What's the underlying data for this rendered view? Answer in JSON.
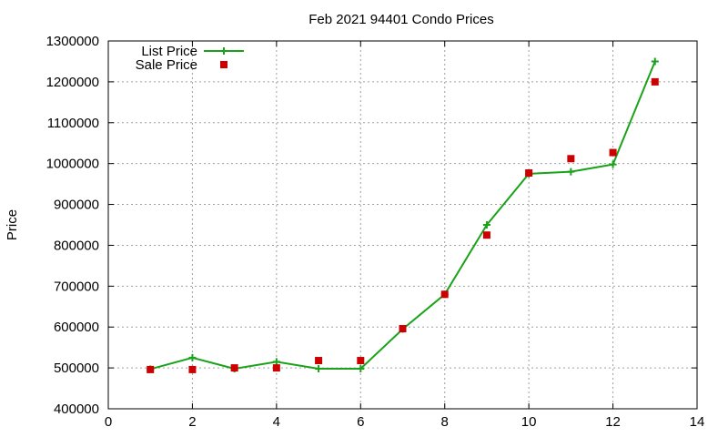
{
  "chart_data": {
    "type": "line",
    "title": "Feb 2021 94401 Condo Prices",
    "xlabel": "",
    "ylabel": "Price",
    "xlim": [
      0,
      14
    ],
    "ylim": [
      400000,
      1300000
    ],
    "xticks": [
      0,
      2,
      4,
      6,
      8,
      10,
      12,
      14
    ],
    "yticks": [
      400000,
      500000,
      600000,
      700000,
      800000,
      900000,
      1000000,
      1100000,
      1200000,
      1300000
    ],
    "grid": true,
    "legend": "top-left",
    "series": [
      {
        "name": "List Price",
        "style": "line+cross",
        "color": "#1aa31a",
        "x": [
          1,
          2,
          3,
          4,
          5,
          6,
          7,
          8,
          9,
          10,
          11,
          12,
          13
        ],
        "y": [
          497000,
          525000,
          498000,
          515000,
          498000,
          498000,
          595000,
          680000,
          850000,
          975000,
          980000,
          998000,
          1250000
        ]
      },
      {
        "name": "Sale Price",
        "style": "square",
        "color": "#cc0000",
        "x": [
          1,
          2,
          3,
          4,
          5,
          6,
          7,
          8,
          9,
          10,
          11,
          12,
          13
        ],
        "y": [
          496000,
          496000,
          500000,
          500000,
          518000,
          518000,
          596000,
          680000,
          825000,
          977000,
          1012000,
          1027000,
          1200000
        ]
      }
    ]
  }
}
